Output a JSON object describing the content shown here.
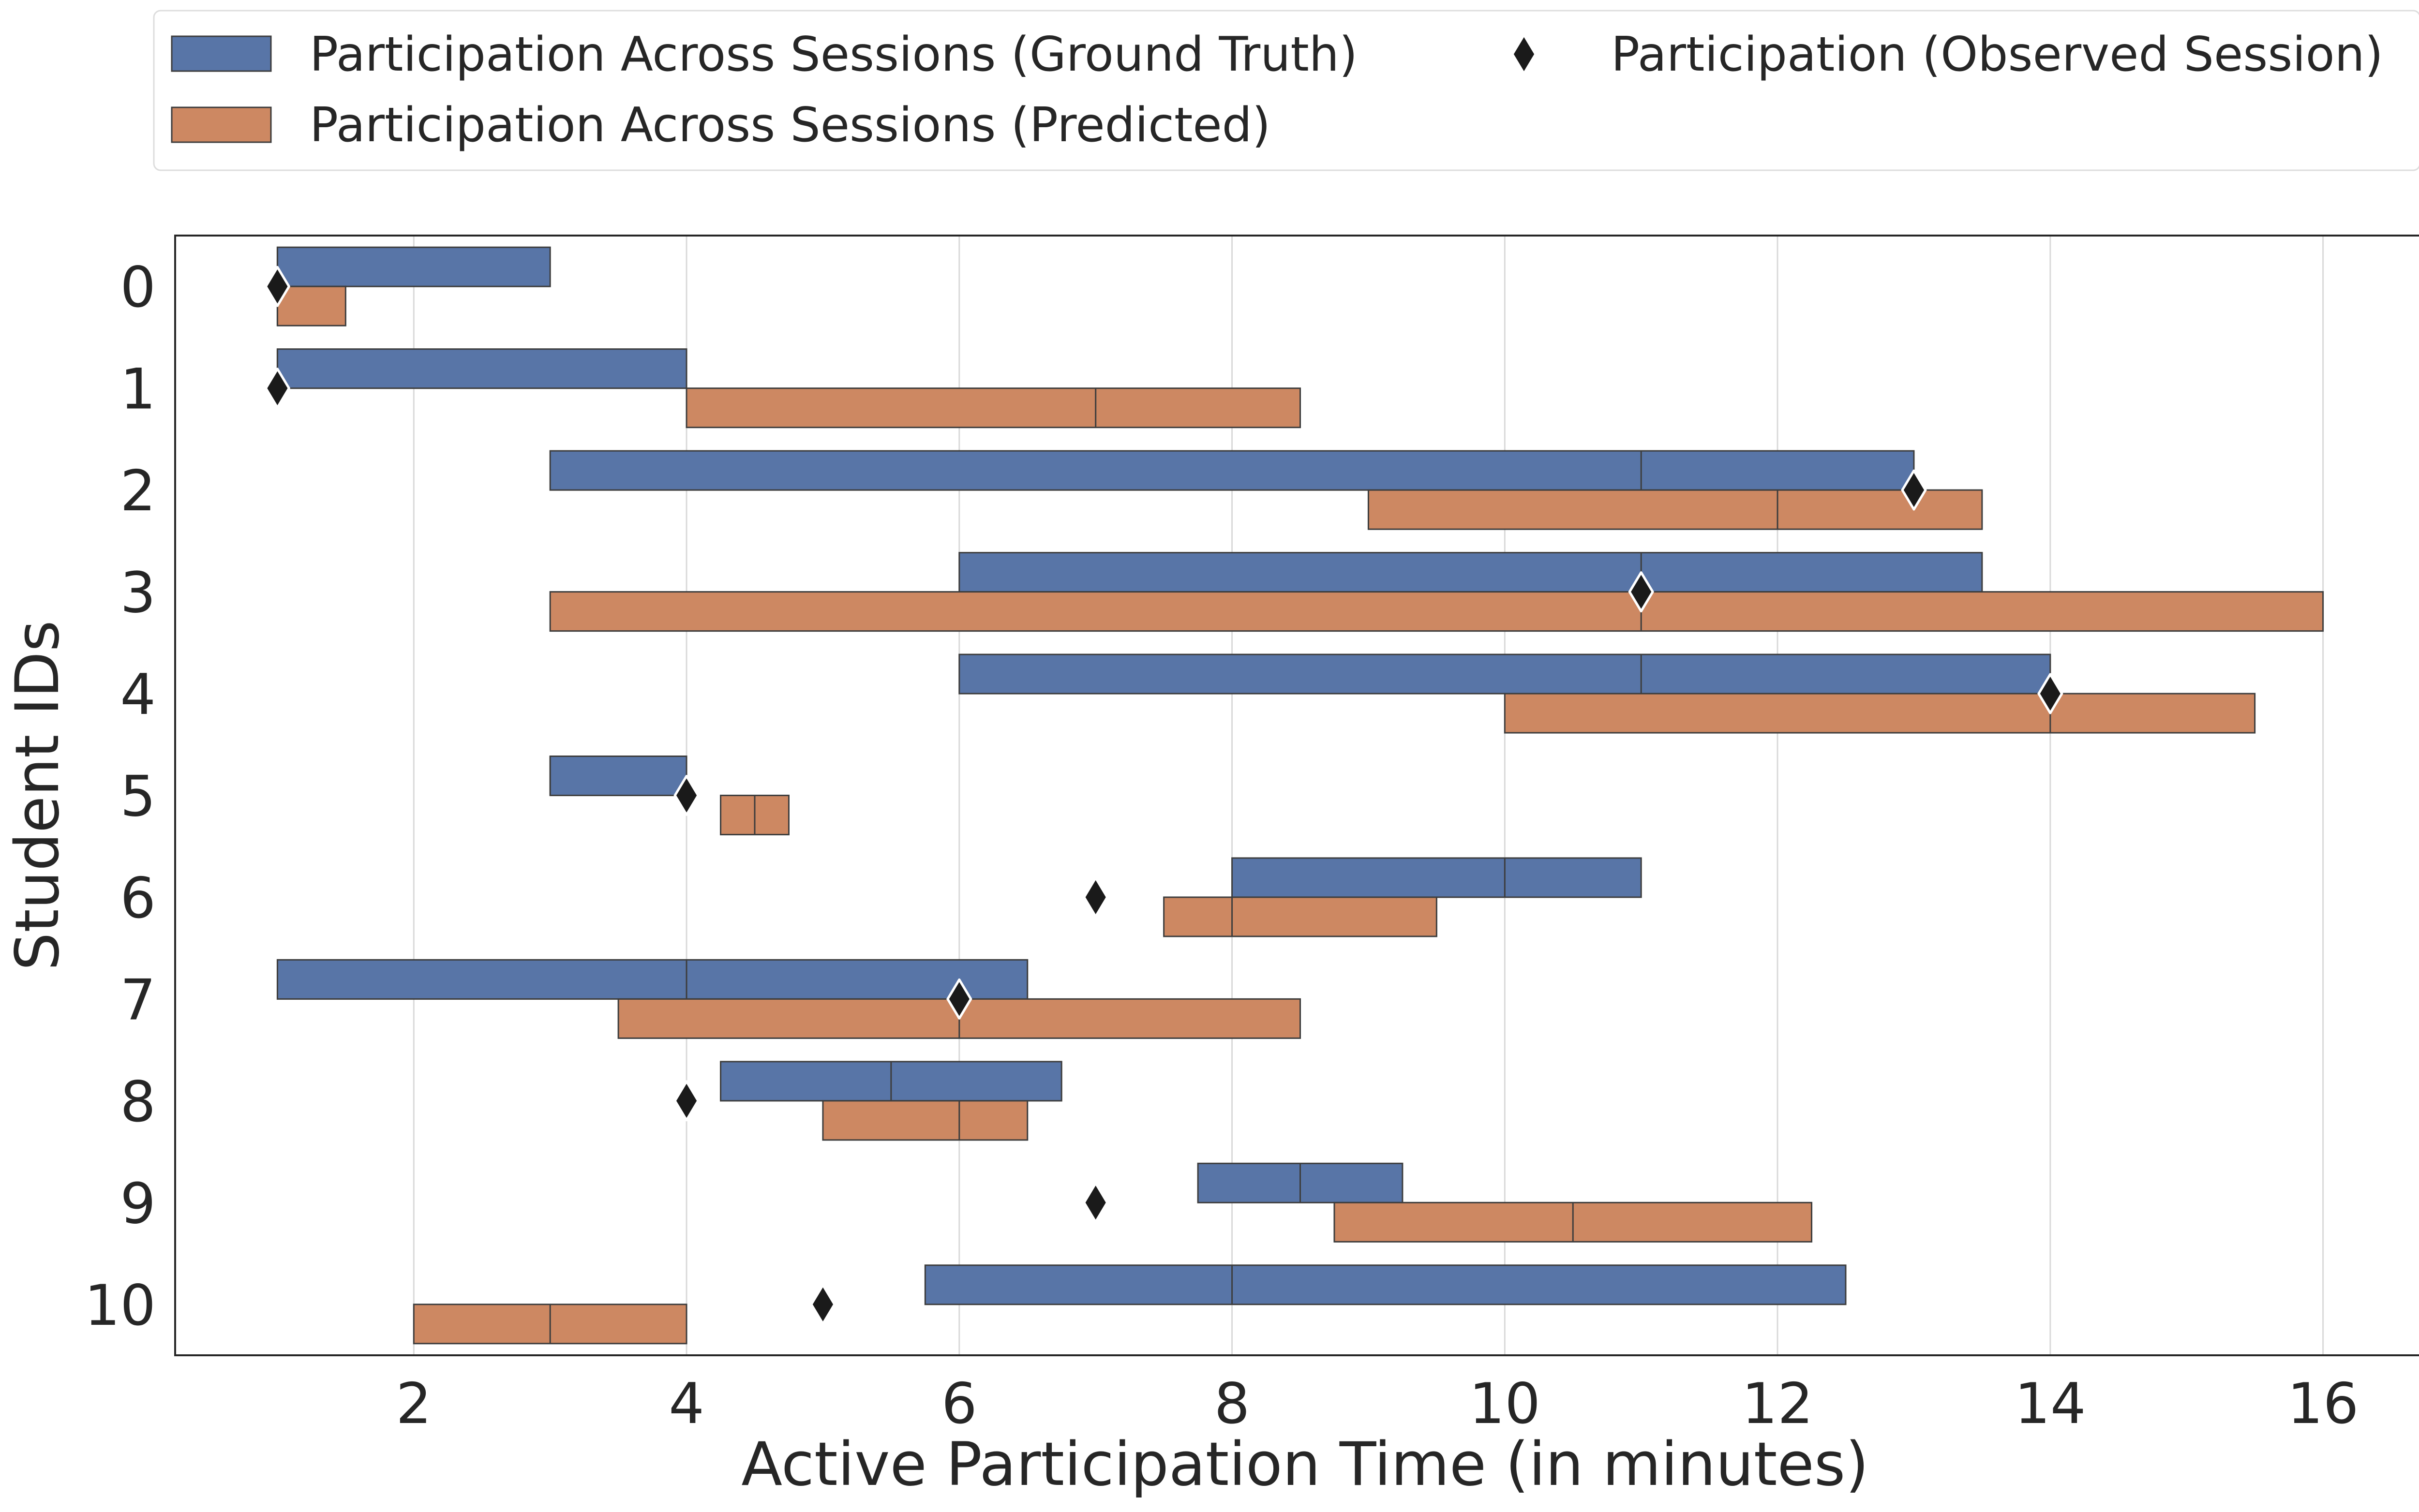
{
  "chart_data": {
    "type": "box",
    "orientation": "horizontal",
    "xlabel": "Active Participation Time (in minutes)",
    "ylabel": "Student IDs",
    "categories": [
      "0",
      "1",
      "2",
      "3",
      "4",
      "5",
      "6",
      "7",
      "8",
      "9",
      "10"
    ],
    "xlim": [
      0.25,
      16.75
    ],
    "xticks": [
      2,
      4,
      6,
      8,
      10,
      12,
      14,
      16
    ],
    "grid": "vertical",
    "legend_position": "top",
    "series": [
      {
        "name": "Participation Across Sessions (Ground Truth)",
        "color": "#5875a7",
        "boxes": [
          {
            "q1": 1,
            "median": 1,
            "q3": 3
          },
          {
            "q1": 1,
            "median": 1,
            "q3": 4
          },
          {
            "q1": 3,
            "median": 11,
            "q3": 13
          },
          {
            "q1": 6,
            "median": 11,
            "q3": 13.5
          },
          {
            "q1": 6,
            "median": 11,
            "q3": 14
          },
          {
            "q1": 3,
            "median": 3,
            "q3": 4
          },
          {
            "q1": 8,
            "median": 10,
            "q3": 11
          },
          {
            "q1": 1,
            "median": 4,
            "q3": 6.5
          },
          {
            "q1": 4.25,
            "median": 5.5,
            "q3": 6.75
          },
          {
            "q1": 7.75,
            "median": 8.5,
            "q3": 9.25
          },
          {
            "q1": 5.75,
            "median": 8,
            "q3": 12.5
          }
        ]
      },
      {
        "name": "Participation Across Sessions (Predicted)",
        "color": "#cd8862",
        "boxes": [
          {
            "q1": 1,
            "median": 1,
            "q3": 1.5
          },
          {
            "q1": 4,
            "median": 7,
            "q3": 8.5
          },
          {
            "q1": 9,
            "median": 12,
            "q3": 13.5
          },
          {
            "q1": 3,
            "median": 11,
            "q3": 16
          },
          {
            "q1": 10,
            "median": 14,
            "q3": 15.5
          },
          {
            "q1": 4.25,
            "median": 4.5,
            "q3": 4.75
          },
          {
            "q1": 7.5,
            "median": 8,
            "q3": 9.5
          },
          {
            "q1": 3.5,
            "median": 6,
            "q3": 8.5
          },
          {
            "q1": 5,
            "median": 6,
            "q3": 6.5
          },
          {
            "q1": 8.75,
            "median": 10.5,
            "q3": 12.25
          },
          {
            "q1": 2,
            "median": 3,
            "q3": 4
          }
        ]
      }
    ],
    "observed": {
      "name": "Participation (Observed Session)",
      "marker": "diamond",
      "color": "#1a1a1a",
      "values": [
        1,
        1,
        13,
        11,
        14,
        4,
        7,
        6,
        4,
        7,
        5
      ]
    }
  }
}
